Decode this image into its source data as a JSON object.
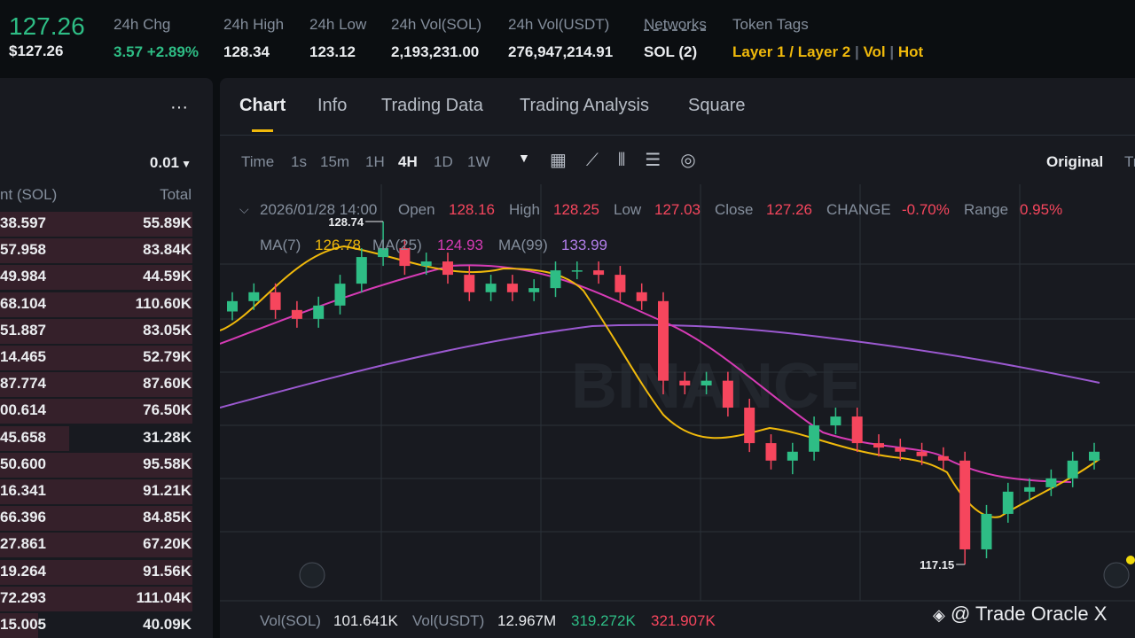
{
  "header": {
    "price": "127.26",
    "price_usd": "$127.26",
    "stats": [
      {
        "label": "24h Chg",
        "value": "3.57 +2.89%"
      },
      {
        "label": "24h High",
        "value": "128.34"
      },
      {
        "label": "24h Low",
        "value": "123.12"
      },
      {
        "label": "24h Vol(SOL)",
        "value": "2,193,231.00"
      },
      {
        "label": "24h Vol(USDT)",
        "value": "276,947,214.91"
      },
      {
        "label": "Networks",
        "value": "SOL (2)"
      }
    ],
    "tags_label": "Token Tags",
    "tags": [
      "Layer 1 / Layer 2",
      "Vol",
      "Hot"
    ]
  },
  "orderbook": {
    "menu": "···",
    "precision": "0.01",
    "col_amount": "nt (SOL)",
    "col_total": "Total",
    "rows": [
      [
        "38.597",
        "55.89K"
      ],
      [
        "57.958",
        "83.84K"
      ],
      [
        "49.984",
        "44.59K"
      ],
      [
        "68.104",
        "110.60K"
      ],
      [
        "51.887",
        "83.05K"
      ],
      [
        "14.465",
        "52.79K"
      ],
      [
        "87.774",
        "87.60K"
      ],
      [
        "00.614",
        "76.50K"
      ],
      [
        "45.658",
        "31.28K"
      ],
      [
        "50.600",
        "95.58K"
      ],
      [
        "16.341",
        "91.21K"
      ],
      [
        "66.396",
        "84.85K"
      ],
      [
        "27.861",
        "67.20K"
      ],
      [
        "19.264",
        "91.56K"
      ],
      [
        "72.293",
        "111.04K"
      ],
      [
        "15.005",
        "40.09K"
      ]
    ]
  },
  "tabs": [
    "Chart",
    "Info",
    "Trading Data",
    "Trading Analysis",
    "Square"
  ],
  "intervals": [
    "Time",
    "1s",
    "15m",
    "1H",
    "4H",
    "1D",
    "1W"
  ],
  "view": "Original",
  "view_cut": "Tr",
  "ohlc": {
    "time": "2026/01/28 14:00",
    "open_label": "Open",
    "open": "128.16",
    "high_label": "High",
    "high": "128.25",
    "low_label": "Low",
    "low": "127.03",
    "close_label": "Close",
    "close": "127.26",
    "change_label": "CHANGE",
    "change": "-0.70%",
    "range_label": "Range",
    "range": "0.95%"
  },
  "ma": {
    "ma7_label": "MA(7)",
    "ma7": "126.78",
    "ma25_label": "MA(25)",
    "ma25": "124.93",
    "ma99_label": "MA(99)",
    "ma99": "133.99"
  },
  "vol": {
    "sol_label": "Vol(SOL)",
    "sol": "101.641K",
    "usdt_label": "Vol(USDT)",
    "usdt": "12.967M",
    "a": "319.272K",
    "b": "321.907K"
  },
  "brand": "BINANCE",
  "watermark": "@ Trade Oracle X",
  "chart_data": {
    "type": "candlestick",
    "high_mark": 128.74,
    "low_mark": 117.15,
    "open": [
      125.7,
      126.05,
      126.35,
      125.75,
      125.45,
      125.9,
      126.64,
      127.54,
      127.84,
      127.24,
      127.39,
      126.94,
      126.35,
      126.64,
      126.35,
      126.49,
      127.09,
      127.09,
      126.94,
      126.35,
      126.05,
      123.36,
      123.2,
      123.36,
      122.45,
      121.25,
      120.66,
      120.96,
      121.85,
      122.15,
      121.25,
      121.1,
      120.96,
      120.81,
      120.66,
      117.66,
      118.86,
      119.61,
      119.76,
      120.06,
      120.66
    ],
    "high": [
      126.35,
      126.65,
      126.65,
      126.05,
      126.2,
      126.94,
      127.84,
      128.74,
      128.14,
      127.69,
      127.69,
      127.24,
      126.94,
      126.94,
      126.79,
      127.39,
      127.39,
      127.39,
      127.24,
      126.65,
      126.35,
      123.66,
      123.66,
      123.66,
      122.75,
      121.55,
      121.26,
      122.15,
      122.45,
      122.45,
      121.55,
      121.4,
      121.26,
      121.11,
      120.96,
      119.16,
      119.91,
      120.06,
      120.36,
      120.96,
      121.26
    ],
    "low": [
      125.4,
      125.75,
      125.45,
      125.15,
      125.15,
      125.6,
      126.34,
      127.24,
      126.94,
      126.94,
      126.64,
      126.05,
      126.05,
      126.05,
      126.05,
      126.19,
      126.79,
      126.64,
      126.05,
      125.75,
      122.9,
      122.9,
      122.9,
      122.15,
      120.95,
      120.36,
      120.2,
      120.66,
      121.55,
      120.95,
      120.8,
      120.66,
      120.51,
      120.36,
      117.15,
      117.36,
      118.56,
      119.31,
      119.46,
      119.76,
      120.36
    ],
    "close": [
      126.05,
      126.35,
      125.75,
      125.45,
      125.9,
      126.64,
      127.54,
      127.84,
      127.24,
      127.39,
      126.94,
      126.35,
      126.64,
      126.35,
      126.49,
      127.09,
      127.09,
      126.94,
      126.35,
      126.05,
      123.36,
      123.2,
      123.36,
      122.45,
      121.25,
      120.66,
      120.96,
      121.85,
      122.15,
      121.25,
      121.1,
      120.96,
      120.81,
      120.66,
      117.66,
      118.86,
      119.61,
      119.76,
      120.06,
      120.66,
      120.96
    ]
  }
}
